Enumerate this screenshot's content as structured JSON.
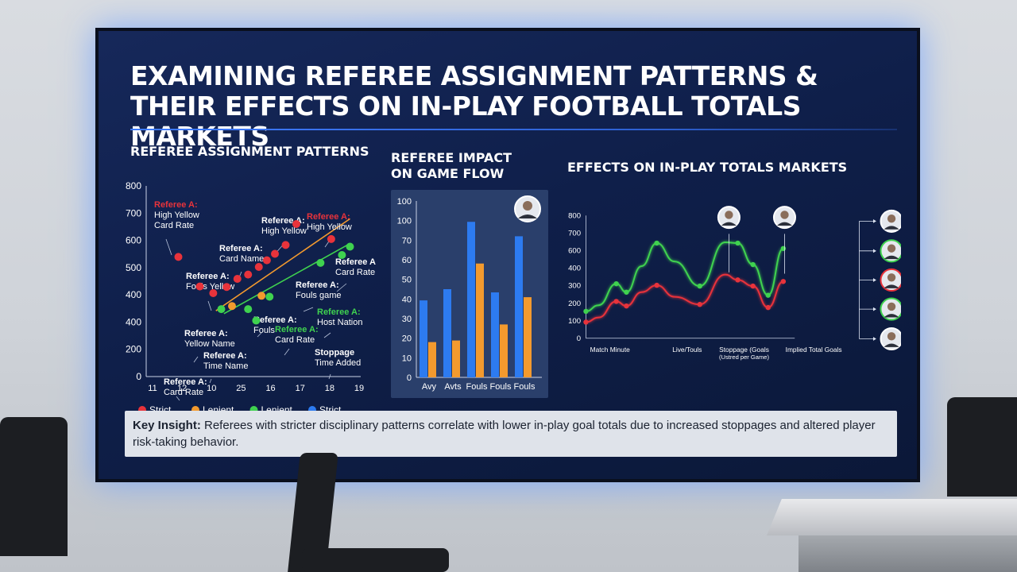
{
  "title": {
    "line1": "EXAMINING REFEREE ASSIGNMENT PATTERNS &",
    "line2": "THEIR EFFECTS ON IN-PLAY FOOTBALL TOTALS MARKETS"
  },
  "insight": {
    "label": "Key Insight:",
    "text": " Referees with stricter disciplinary patterns correlate with lower in-play goal totals due to increased stoppages and altered player risk-taking behavior."
  },
  "colors": {
    "red": "#e8333b",
    "orange": "#f39a2e",
    "green": "#3fd24f",
    "blue": "#2d7bf0"
  },
  "chart_data": [
    {
      "type": "scatter",
      "title": "REFEREE ASSIGNMENT PATTERNS",
      "x_ticks": [
        "11",
        "12",
        "10",
        "25",
        "16",
        "17",
        "18",
        "19"
      ],
      "ylim": [
        0,
        800
      ],
      "y_ticks": [
        "0",
        "200",
        "400",
        "400",
        "500",
        "600",
        "700",
        "800"
      ],
      "series": [
        {
          "name": "Strict",
          "color": "red",
          "points": [
            [
              1.2,
              502
            ],
            [
              2.0,
              378
            ],
            [
              2.5,
              350
            ],
            [
              3.0,
              376
            ],
            [
              3.4,
              410
            ],
            [
              3.8,
              428
            ],
            [
              4.2,
              460
            ],
            [
              4.5,
              488
            ],
            [
              4.8,
              515
            ],
            [
              5.2,
              552
            ],
            [
              5.6,
              640
            ],
            [
              6.9,
              577
            ]
          ]
        },
        {
          "name": "Lenient",
          "color": "orange",
          "points": [
            [
              3.2,
              296
            ],
            [
              4.3,
              339
            ]
          ]
        },
        {
          "name": "Lenient",
          "color": "green",
          "points": [
            [
              2.8,
              283
            ],
            [
              3.8,
              283
            ],
            [
              4.1,
              235
            ],
            [
              4.6,
              335
            ],
            [
              6.5,
              477
            ],
            [
              7.3,
              510
            ],
            [
              7.6,
              545
            ]
          ]
        },
        {
          "name": "Strict",
          "color": "blue",
          "points": []
        }
      ],
      "trendlines": [
        {
          "color": "orange",
          "from": [
            2.6,
            276
          ],
          "to": [
            7.6,
            662
          ]
        },
        {
          "color": "green",
          "from": [
            2.9,
            264
          ],
          "to": [
            7.6,
            558
          ]
        }
      ],
      "annotations": [
        {
          "lines": [
            "Referee A:",
            "High Yellow",
            "Card Rate"
          ],
          "red_first": true
        },
        {
          "lines": [
            "Referee A:",
            "High Yellow"
          ]
        },
        {
          "lines": [
            "Referee A:",
            "High Yellow"
          ],
          "red_first": true
        },
        {
          "lines": [
            "Referee A:",
            "Card Name"
          ]
        },
        {
          "lines": [
            "Referee A:",
            "Card Rate"
          ]
        },
        {
          "lines": [
            "Referee A:",
            "Fouls Yellow"
          ]
        },
        {
          "lines": [
            "Referee A:",
            "Fouls game"
          ]
        },
        {
          "lines": [
            "Referee A:",
            "Fouls"
          ]
        },
        {
          "lines": [
            "Referee A:",
            "Host Nation"
          ],
          "green_first": true
        },
        {
          "lines": [
            "Referee A:",
            "Yellow Name"
          ]
        },
        {
          "lines": [
            "Referee A:",
            "Card Rate"
          ],
          "green_first": true
        },
        {
          "lines": [
            "Referee A:",
            "Time Name"
          ]
        },
        {
          "lines": [
            "Stoppage",
            "Time Added"
          ]
        },
        {
          "lines": [
            "Referee A:",
            "Card Rate"
          ]
        }
      ],
      "legend": [
        {
          "label": "Strict",
          "color": "red"
        },
        {
          "label": "Lenient",
          "color": "orange"
        },
        {
          "label": "Lenient",
          "color": "green"
        },
        {
          "label": "Strict",
          "color": "blue"
        }
      ]
    },
    {
      "type": "bar",
      "title": [
        "REFEREE IMPACT",
        "ON GAME FLOW"
      ],
      "categories": [
        "Avy",
        "Avts",
        "Fouls",
        "Fouls",
        "Fouls"
      ],
      "y_ticks": [
        "0",
        "10",
        "20",
        "30",
        "40",
        "50",
        "60",
        "70",
        "100",
        "100"
      ],
      "series": [
        {
          "color": "blue",
          "values": [
            48,
            55,
            97,
            53,
            88
          ]
        },
        {
          "color": "orange",
          "values": [
            22,
            23,
            71,
            33,
            50
          ]
        }
      ],
      "ylim": [
        0,
        110
      ]
    },
    {
      "type": "line",
      "title": "EFFECTS ON IN-PLAY TOTALS MARKETS",
      "ylim": [
        0,
        800
      ],
      "y_ticks": [
        "0",
        "100",
        "200",
        "300",
        "400",
        "600",
        "700",
        "800"
      ],
      "x_labels": [
        [
          "Match Minute"
        ],
        [
          "Live/Touls"
        ],
        [
          "Stoppage (Goals",
          "(Ustred per Game)"
        ],
        [
          "Implied Total Goals"
        ]
      ],
      "series": [
        {
          "color": "green",
          "x": [
            0,
            5,
            12,
            16,
            22,
            28,
            35,
            45,
            55,
            60,
            66,
            72,
            78
          ],
          "y": [
            175,
            215,
            355,
            300,
            470,
            620,
            500,
            340,
            625,
            620,
            480,
            280,
            585
          ]
        },
        {
          "color": "red",
          "x": [
            0,
            5,
            12,
            16,
            22,
            28,
            35,
            45,
            55,
            60,
            66,
            72,
            78
          ],
          "y": [
            105,
            135,
            240,
            210,
            300,
            345,
            270,
            220,
            415,
            380,
            340,
            200,
            370
          ]
        }
      ]
    }
  ]
}
